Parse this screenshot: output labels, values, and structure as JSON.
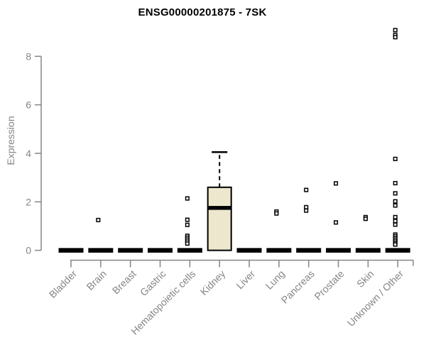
{
  "colors": {
    "background": "#ffffff",
    "title": "#000000",
    "axis": "#858585",
    "tick_label": "#858585",
    "box_fill": "#ede8cd",
    "box_stroke": "#000000",
    "collapsed_bar": "#000000",
    "outlier_stroke": "#000000",
    "outlier_fill": "#ffffff"
  },
  "chart_data": {
    "type": "boxplot",
    "title": "ENSG00000201875 - 7SK",
    "ylabel": "Expression",
    "xlabel": "",
    "ylim": [
      0,
      9.3
    ],
    "yticks": [
      0,
      2,
      4,
      6,
      8
    ],
    "grid": false,
    "legend": null,
    "categories": [
      "Bladder",
      "Brain",
      "Breast",
      "Gastric",
      "Hematopoietic cells",
      "Kidney",
      "Liver",
      "Lung",
      "Pancreas",
      "Prostate",
      "Skin",
      "Unknown / Other"
    ],
    "boxes": [
      {
        "category": "Bladder",
        "q1": 0,
        "median": 0,
        "q3": 0,
        "whisker_low": 0,
        "whisker_high": 0,
        "outliers": []
      },
      {
        "category": "Brain",
        "q1": 0,
        "median": 0,
        "q3": 0,
        "whisker_low": 0,
        "whisker_high": 0,
        "outliers": [
          1.25
        ]
      },
      {
        "category": "Breast",
        "q1": 0,
        "median": 0,
        "q3": 0,
        "whisker_low": 0,
        "whisker_high": 0,
        "outliers": []
      },
      {
        "category": "Gastric",
        "q1": 0,
        "median": 0,
        "q3": 0,
        "whisker_low": 0,
        "whisker_high": 0,
        "outliers": []
      },
      {
        "category": "Hematopoietic cells",
        "q1": 0,
        "median": 0,
        "q3": 0,
        "whisker_low": 0,
        "whisker_high": 0,
        "outliers": [
          2.14,
          1.26,
          1.05,
          0.6,
          0.52,
          0.44,
          0.36,
          0.28
        ]
      },
      {
        "category": "Kidney",
        "q1": 0,
        "median": 1.75,
        "q3": 2.6,
        "whisker_low": 0,
        "whisker_high": 4.05,
        "outliers": []
      },
      {
        "category": "Liver",
        "q1": 0,
        "median": 0,
        "q3": 0,
        "whisker_low": 0,
        "whisker_high": 0,
        "outliers": []
      },
      {
        "category": "Lung",
        "q1": 0,
        "median": 0,
        "q3": 0,
        "whisker_low": 0,
        "whisker_high": 0,
        "outliers": [
          1.6,
          1.52
        ]
      },
      {
        "category": "Pancreas",
        "q1": 0,
        "median": 0,
        "q3": 0,
        "whisker_low": 0,
        "whisker_high": 0,
        "outliers": [
          2.49,
          1.78,
          1.64
        ]
      },
      {
        "category": "Prostate",
        "q1": 0,
        "median": 0,
        "q3": 0,
        "whisker_low": 0,
        "whisker_high": 0,
        "outliers": [
          2.76,
          1.15
        ]
      },
      {
        "category": "Skin",
        "q1": 0,
        "median": 0,
        "q3": 0,
        "whisker_low": 0,
        "whisker_high": 0,
        "outliers": [
          1.37,
          1.3
        ]
      },
      {
        "category": "Unknown / Other",
        "q1": 0,
        "median": 0,
        "q3": 0,
        "whisker_low": 0,
        "whisker_high": 0,
        "outliers": [
          9.08,
          8.88,
          8.79,
          3.77,
          2.77,
          2.35,
          2.02,
          1.85,
          1.37,
          1.21,
          1.06,
          0.65,
          0.58,
          0.51,
          0.44,
          0.37,
          0.3,
          0.24
        ]
      }
    ]
  }
}
